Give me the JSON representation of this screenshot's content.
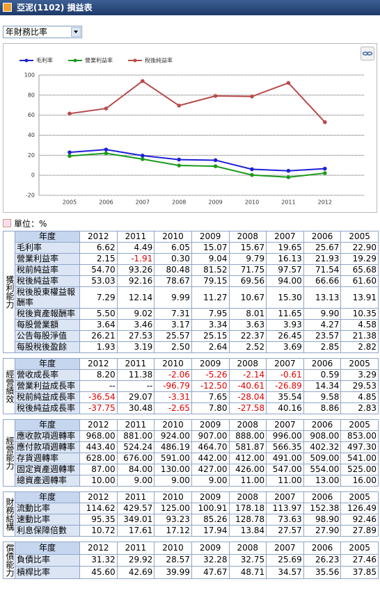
{
  "header": {
    "title": "亞泥(1102) 損益表"
  },
  "selector": {
    "value": "年財務比率"
  },
  "chart_data": {
    "type": "line",
    "categories": [
      "2005",
      "2006",
      "2007",
      "2008",
      "2009",
      "2010",
      "2011",
      "2012"
    ],
    "series": [
      {
        "name": "毛利率",
        "color": "#1f1fd6",
        "values": [
          22.9,
          25.67,
          19.65,
          15.67,
          15.07,
          6.05,
          4.49,
          6.62
        ]
      },
      {
        "name": "營業利益率",
        "color": "#1a9a1a",
        "values": [
          19.29,
          21.93,
          16.13,
          9.79,
          9.04,
          0.3,
          -1.91,
          2.15
        ]
      },
      {
        "name": "稅後純益率",
        "color": "#b84b4b",
        "values": [
          61.6,
          66.66,
          94.0,
          69.56,
          79.15,
          78.67,
          92.16,
          53.03
        ]
      }
    ],
    "ylim": [
      -20,
      100
    ],
    "yticks": [
      -20,
      0,
      20,
      40,
      60,
      80,
      100
    ],
    "grid": true,
    "legend": "top-left"
  },
  "unit": "單位：%",
  "tables": [
    {
      "group": "獲利能力",
      "header": [
        "年度",
        "2012",
        "2011",
        "2010",
        "2009",
        "2008",
        "2007",
        "2006",
        "2005"
      ],
      "rows": [
        [
          "毛利率",
          "6.62",
          "4.49",
          "6.05",
          "15.07",
          "15.67",
          "19.65",
          "25.67",
          "22.90"
        ],
        [
          "營業利益率",
          "2.15",
          "-1.91",
          "0.30",
          "9.04",
          "9.79",
          "16.13",
          "21.93",
          "19.29"
        ],
        [
          "稅前純益率",
          "54.70",
          "93.26",
          "80.48",
          "81.52",
          "71.75",
          "97.57",
          "71.54",
          "65.68"
        ],
        [
          "稅後純益率",
          "53.03",
          "92.16",
          "78.67",
          "79.15",
          "69.56",
          "94.00",
          "66.66",
          "61.60"
        ],
        [
          "稅後股東權益報酬率",
          "7.29",
          "12.14",
          "9.99",
          "11.27",
          "10.67",
          "15.30",
          "13.13",
          "13.91"
        ],
        [
          "稅後資產報酬率",
          "5.50",
          "9.02",
          "7.31",
          "7.95",
          "8.01",
          "11.65",
          "9.90",
          "10.35"
        ],
        [
          "每股營業額",
          "3.64",
          "3.46",
          "3.17",
          "3.34",
          "3.63",
          "3.93",
          "4.27",
          "4.58"
        ],
        [
          "公告每股淨值",
          "26.21",
          "27.53",
          "25.57",
          "25.15",
          "22.37",
          "26.45",
          "23.57",
          "21.38"
        ],
        [
          "每股稅後盈餘",
          "1.93",
          "3.19",
          "2.50",
          "2.64",
          "2.52",
          "3.69",
          "2.85",
          "2.82"
        ]
      ]
    },
    {
      "group": "經營績效",
      "header": [
        "年度",
        "2012",
        "2011",
        "2010",
        "2009",
        "2008",
        "2007",
        "2006",
        "2005"
      ],
      "rows": [
        [
          "營收成長率",
          "8.20",
          "11.38",
          "-2.06",
          "-5.26",
          "-2.14",
          "-0.61",
          "0.59",
          "3.29"
        ],
        [
          "營業利益成長率",
          "--",
          "--",
          "-96.79",
          "-12.50",
          "-40.61",
          "-26.89",
          "14.34",
          "29.53"
        ],
        [
          "稅前純益成長率",
          "-36.54",
          "29.07",
          "-3.31",
          "7.65",
          "-28.04",
          "35.54",
          "9.58",
          "4.85"
        ],
        [
          "稅後純益成長率",
          "-37.75",
          "30.48",
          "-2.65",
          "7.80",
          "-27.58",
          "40.16",
          "8.86",
          "2.83"
        ]
      ]
    },
    {
      "group": "經營能力",
      "header": [
        "年度",
        "2012",
        "2011",
        "2010",
        "2009",
        "2008",
        "2007",
        "2006",
        "2005"
      ],
      "rows": [
        [
          "應收款項週轉率",
          "968.00",
          "881.00",
          "924.00",
          "907.00",
          "888.00",
          "996.00",
          "908.00",
          "853.00"
        ],
        [
          "應付款項週轉率",
          "443.40",
          "524.24",
          "486.19",
          "464.70",
          "581.87",
          "566.35",
          "402.32",
          "497.30"
        ],
        [
          "存貨週轉率",
          "628.00",
          "676.00",
          "591.00",
          "442.00",
          "412.00",
          "491.00",
          "509.00",
          "541.00"
        ],
        [
          "固定資產週轉率",
          "87.00",
          "84.00",
          "130.00",
          "427.00",
          "426.00",
          "547.00",
          "554.00",
          "525.00"
        ],
        [
          "總資產週轉率",
          "10.00",
          "9.00",
          "9.00",
          "9.00",
          "11.00",
          "11.00",
          "13.00",
          "16.00"
        ]
      ]
    },
    {
      "group": "財務結構",
      "header": [
        "年度",
        "2012",
        "2011",
        "2010",
        "2009",
        "2008",
        "2007",
        "2006",
        "2005"
      ],
      "rows": [
        [
          "流動比率",
          "114.62",
          "429.57",
          "125.00",
          "100.91",
          "178.18",
          "113.97",
          "152.38",
          "126.49"
        ],
        [
          "速動比率",
          "95.35",
          "349.01",
          "93.23",
          "85.26",
          "128.78",
          "73.63",
          "98.90",
          "92.46"
        ],
        [
          "利息保障倍數",
          "10.72",
          "17.61",
          "17.12",
          "17.94",
          "13.84",
          "27.57",
          "27.90",
          "27.89"
        ]
      ]
    },
    {
      "group": "償債能力",
      "header": [
        "年度",
        "2012",
        "2011",
        "2010",
        "2009",
        "2008",
        "2007",
        "2006",
        "2005"
      ],
      "rows": [
        [
          "負債比率",
          "31.32",
          "29.92",
          "28.57",
          "32.28",
          "32.75",
          "25.69",
          "26.23",
          "27.46"
        ],
        [
          "槓桿比率",
          "45.60",
          "42.69",
          "39.99",
          "47.67",
          "48.71",
          "34.57",
          "35.56",
          "37.85"
        ]
      ]
    }
  ]
}
